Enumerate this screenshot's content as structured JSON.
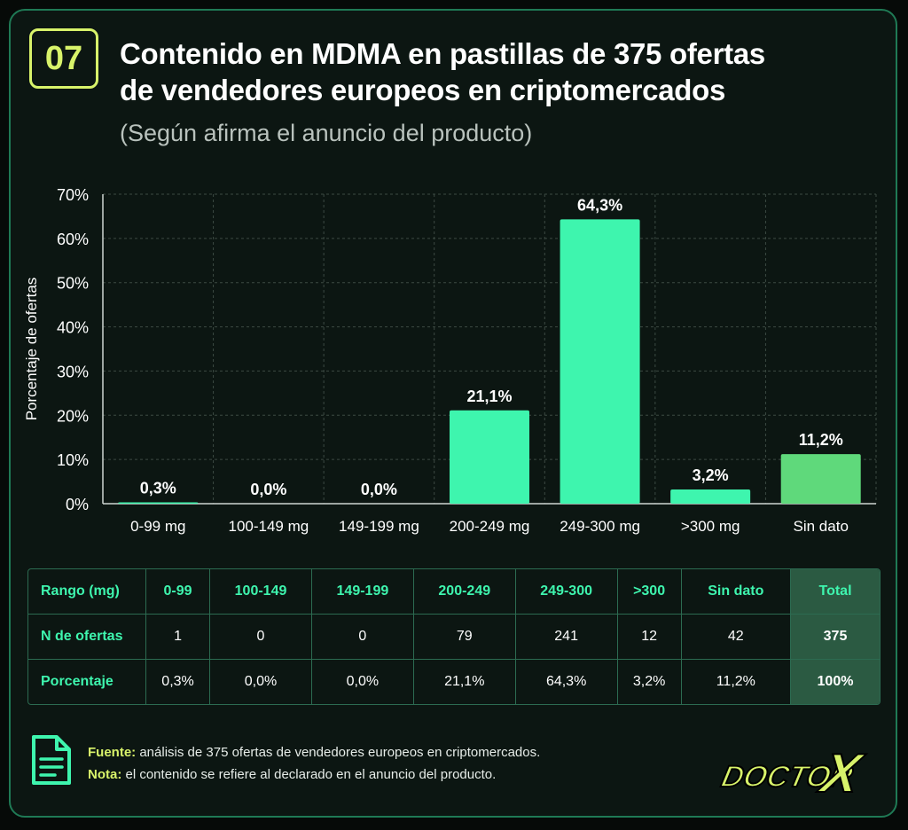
{
  "header": {
    "number": "07",
    "title_line1": "Contenido en MDMA en pastillas de 375 ofertas",
    "title_line2": "de vendedores europeos en criptomercados",
    "subtitle": "(Según afirma el anuncio del producto)"
  },
  "chart_data": {
    "type": "bar",
    "title": "Contenido en MDMA en pastillas de 375 ofertas de vendedores europeos en criptomercados",
    "subtitle": "(Según afirma el anuncio del producto)",
    "ylabel": "Porcentaje de ofertas",
    "xlabel": "",
    "categories": [
      "0-99 mg",
      "100-149 mg",
      "149-199 mg",
      "200-249 mg",
      "249-300 mg",
      ">300 mg",
      "Sin dato"
    ],
    "values": [
      0.3,
      0.0,
      0.0,
      21.1,
      64.3,
      3.2,
      11.2
    ],
    "value_labels": [
      "0,3%",
      "0,0%",
      "0,0%",
      "21,1%",
      "64,3%",
      "3,2%",
      "11,2%"
    ],
    "ylim": [
      0,
      70
    ],
    "yticks": [
      0,
      10,
      20,
      30,
      40,
      50,
      60,
      70
    ],
    "ytick_labels": [
      "0%",
      "10%",
      "20%",
      "30%",
      "40%",
      "50%",
      "60%",
      "70%"
    ],
    "grid": true,
    "bar_color": "#3ef5ae",
    "highlight_color": "#5fd97b",
    "highlight_category": "Sin dato"
  },
  "table": {
    "header_label": "Rango (mg)",
    "columns": [
      "0-99",
      "100-149",
      "149-199",
      "200-249",
      "249-300",
      ">300",
      "Sin dato"
    ],
    "total_label": "Total",
    "rows": [
      {
        "label": "N de ofertas",
        "values": [
          "1",
          "0",
          "0",
          "79",
          "241",
          "12",
          "42"
        ],
        "total": "375"
      },
      {
        "label": "Porcentaje",
        "values": [
          "0,3%",
          "0,0%",
          "0,0%",
          "21,1%",
          "64,3%",
          "3,2%",
          "11,2%"
        ],
        "total": "100%"
      }
    ]
  },
  "footer": {
    "source_label": "Fuente:",
    "source_text": " análisis de 375 ofertas de vendedores europeos en criptomercados.",
    "note_label": "Nota:",
    "note_text": " el contenido se refiere al declarado en el anuncio del producto.",
    "logo_text_1": "DOCTOR",
    "logo_text_2": "X"
  },
  "colors": {
    "accent": "#3ef5ae",
    "lime": "#d8f36a",
    "background": "#0c1612",
    "border": "#1f7a55"
  }
}
